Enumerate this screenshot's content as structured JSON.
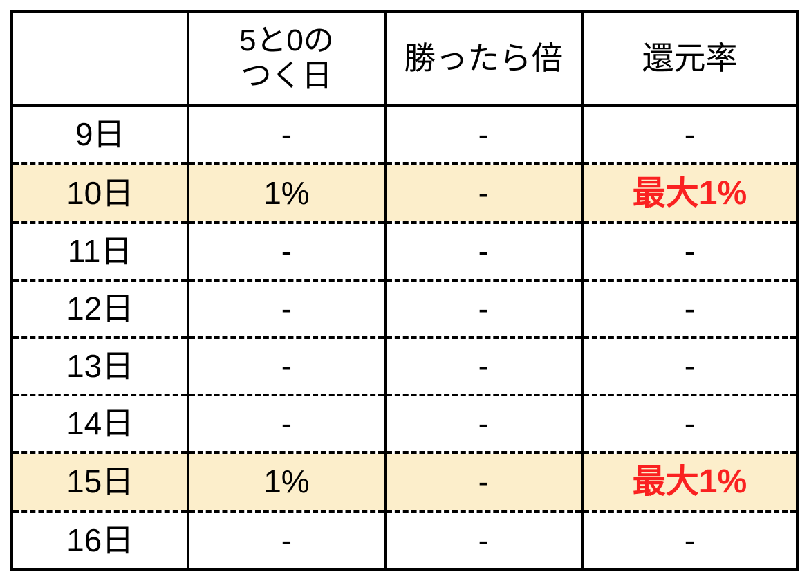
{
  "chart_data": {
    "type": "table",
    "header": {
      "day": "",
      "five_zero_line1": "5と0の",
      "five_zero_line2": "つく日",
      "win_double": "勝ったら倍",
      "return_rate": "還元率"
    },
    "columns": [
      "",
      "5と0の つく日",
      "勝ったら倍",
      "還元率"
    ],
    "rows": [
      {
        "day": "9日",
        "five_zero": "-",
        "win_double": "-",
        "return_rate": "-",
        "highlight": false,
        "emphasis": false
      },
      {
        "day": "10日",
        "five_zero": "1%",
        "win_double": "-",
        "return_rate": "最大1%",
        "highlight": true,
        "emphasis": true
      },
      {
        "day": "11日",
        "five_zero": "-",
        "win_double": "-",
        "return_rate": "-",
        "highlight": false,
        "emphasis": false
      },
      {
        "day": "12日",
        "five_zero": "-",
        "win_double": "-",
        "return_rate": "-",
        "highlight": false,
        "emphasis": false
      },
      {
        "day": "13日",
        "five_zero": "-",
        "win_double": "-",
        "return_rate": "-",
        "highlight": false,
        "emphasis": false
      },
      {
        "day": "14日",
        "five_zero": "-",
        "win_double": "-",
        "return_rate": "-",
        "highlight": false,
        "emphasis": false
      },
      {
        "day": "15日",
        "five_zero": "1%",
        "win_double": "-",
        "return_rate": "最大1%",
        "highlight": true,
        "emphasis": true
      },
      {
        "day": "16日",
        "five_zero": "-",
        "win_double": "-",
        "return_rate": "-",
        "highlight": false,
        "emphasis": false
      }
    ],
    "colors": {
      "background": "#FFFFFF",
      "border": "#000000",
      "highlight_background": "#FCEECB",
      "emphasis_text": "#FA2121"
    },
    "layout": {
      "row_separator_style": "dashed",
      "column_separator_style": "solid",
      "highlighted_rows": [
        "10日",
        "15日"
      ]
    }
  }
}
